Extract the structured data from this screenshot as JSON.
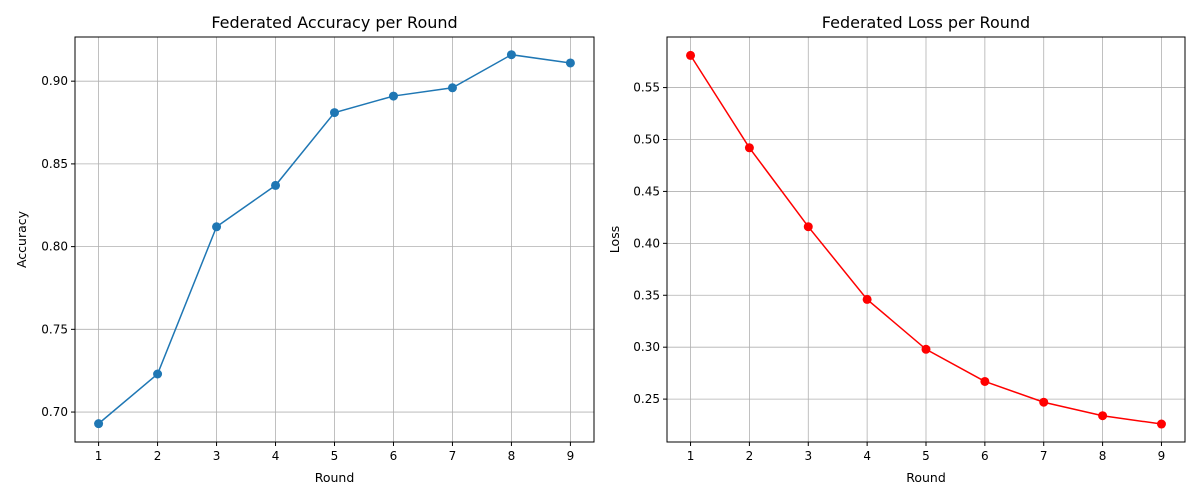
{
  "chart_data": [
    {
      "type": "line",
      "title": "Federated Accuracy per Round",
      "xlabel": "Round",
      "ylabel": "Accuracy",
      "x": [
        1,
        2,
        3,
        4,
        5,
        6,
        7,
        8,
        9
      ],
      "xticks": [
        "1",
        "2",
        "3",
        "4",
        "5",
        "6",
        "7",
        "8",
        "9"
      ],
      "xlim": [
        0.6,
        9.4
      ],
      "ylim": [
        0.6819,
        0.9267
      ],
      "yticks": [
        0.7,
        0.75,
        0.8,
        0.85,
        0.9
      ],
      "ytick_labels": [
        "0.70",
        "0.75",
        "0.80",
        "0.85",
        "0.90"
      ],
      "grid": true,
      "series": [
        {
          "values": [
            0.693,
            0.723,
            0.812,
            0.837,
            0.881,
            0.891,
            0.896,
            0.916,
            0.911
          ],
          "color": "#1f77b4",
          "marker": "circle"
        }
      ]
    },
    {
      "type": "line",
      "title": "Federated Loss per Round",
      "xlabel": "Round",
      "ylabel": "Loss",
      "x": [
        1,
        2,
        3,
        4,
        5,
        6,
        7,
        8,
        9
      ],
      "xticks": [
        "1",
        "2",
        "3",
        "4",
        "5",
        "6",
        "7",
        "8",
        "9"
      ],
      "xlim": [
        0.6,
        9.4
      ],
      "ylim": [
        0.2087,
        0.5987
      ],
      "yticks": [
        0.25,
        0.3,
        0.35,
        0.4,
        0.45,
        0.5,
        0.55
      ],
      "ytick_labels": [
        "0.25",
        "0.30",
        "0.35",
        "0.40",
        "0.45",
        "0.50",
        "0.55"
      ],
      "grid": true,
      "series": [
        {
          "values": [
            0.581,
            0.492,
            0.416,
            0.346,
            0.298,
            0.267,
            0.247,
            0.234,
            0.226
          ],
          "color": "#ff0000",
          "marker": "circle"
        }
      ]
    }
  ]
}
